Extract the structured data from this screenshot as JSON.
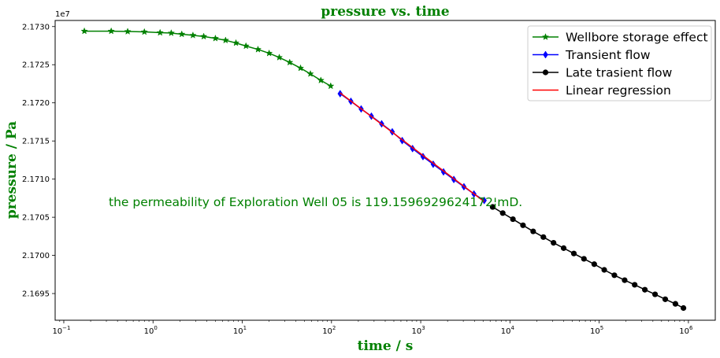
{
  "chart_data": {
    "type": "line",
    "title": "pressure vs. time",
    "xlabel": "time / s",
    "ylabel": "pressure / Pa",
    "xscale": "log",
    "xlim": [
      0.08,
      2000000
    ],
    "ylim": [
      21691500,
      21730800
    ],
    "y_offset_label": "1e7",
    "x_ticks": [
      {
        "value": 0.1,
        "base": "10",
        "exp": "−1"
      },
      {
        "value": 1,
        "base": "10",
        "exp": "0"
      },
      {
        "value": 10,
        "base": "10",
        "exp": "1"
      },
      {
        "value": 100,
        "base": "10",
        "exp": "2"
      },
      {
        "value": 1000,
        "base": "10",
        "exp": "3"
      },
      {
        "value": 10000,
        "base": "10",
        "exp": "4"
      },
      {
        "value": 100000,
        "base": "10",
        "exp": "5"
      },
      {
        "value": 1000000,
        "base": "10",
        "exp": "6"
      }
    ],
    "y_ticks": [
      {
        "value": 21695000,
        "label": "2.1695"
      },
      {
        "value": 21700000,
        "label": "2.1700"
      },
      {
        "value": 21705000,
        "label": "2.1705"
      },
      {
        "value": 21710000,
        "label": "2.1710"
      },
      {
        "value": 21715000,
        "label": "2.1715"
      },
      {
        "value": 21720000,
        "label": "2.1720"
      },
      {
        "value": 21725000,
        "label": "2.1725"
      },
      {
        "value": 21730000,
        "label": "2.1730"
      }
    ],
    "grid": false,
    "legend_position": "top-right",
    "annotation": "the permeability of Exploration Well 05 is 119.1596929624172¦mD.",
    "series": [
      {
        "name": "Wellbore storage effect",
        "color": "#008000",
        "marker": "star",
        "x": [
          0.17,
          0.34,
          0.52,
          0.8,
          1.2,
          1.6,
          2.1,
          2.8,
          3.7,
          5,
          6.5,
          8.5,
          11,
          15,
          20,
          26,
          34,
          45,
          58,
          76,
          98
        ],
        "y": [
          21729400,
          21729400,
          21729350,
          21729300,
          21729200,
          21729150,
          21729000,
          21728850,
          21728700,
          21728450,
          21728200,
          21727850,
          21727450,
          21727000,
          21726500,
          21725950,
          21725300,
          21724550,
          21723800,
          21722950,
          21722200
        ]
      },
      {
        "name": "Transient flow",
        "color": "#0000ff",
        "marker": "diamond",
        "x": [
          125,
          165,
          215,
          280,
          365,
          480,
          620,
          810,
          1060,
          1380,
          1800,
          2350,
          3050,
          3950,
          5150
        ],
        "y": [
          21721200,
          21720200,
          21719200,
          21718250,
          21717250,
          21716200,
          21715050,
          21714000,
          21712950,
          21711950,
          21710950,
          21709950,
          21709000,
          21708050,
          21707200
        ]
      },
      {
        "name": "Late trasient flow",
        "color": "#000000",
        "marker": "circle",
        "x": [
          6400,
          8300,
          10800,
          14000,
          18200,
          23700,
          30800,
          40000,
          52000,
          67500,
          88000,
          114000,
          148000,
          193000,
          250000,
          325000,
          423000,
          550000,
          715000,
          880000
        ],
        "y": [
          21706350,
          21705550,
          21704750,
          21703950,
          21703150,
          21702400,
          21701650,
          21700950,
          21700250,
          21699550,
          21698850,
          21698100,
          21697400,
          21696750,
          21696150,
          21695500,
          21694900,
          21694250,
          21693650,
          21693100
        ]
      },
      {
        "name": "Linear regression",
        "color": "#ff0000",
        "marker": "none",
        "x": [
          125,
          5150
        ],
        "y": [
          21721300,
          21707050
        ]
      }
    ]
  }
}
